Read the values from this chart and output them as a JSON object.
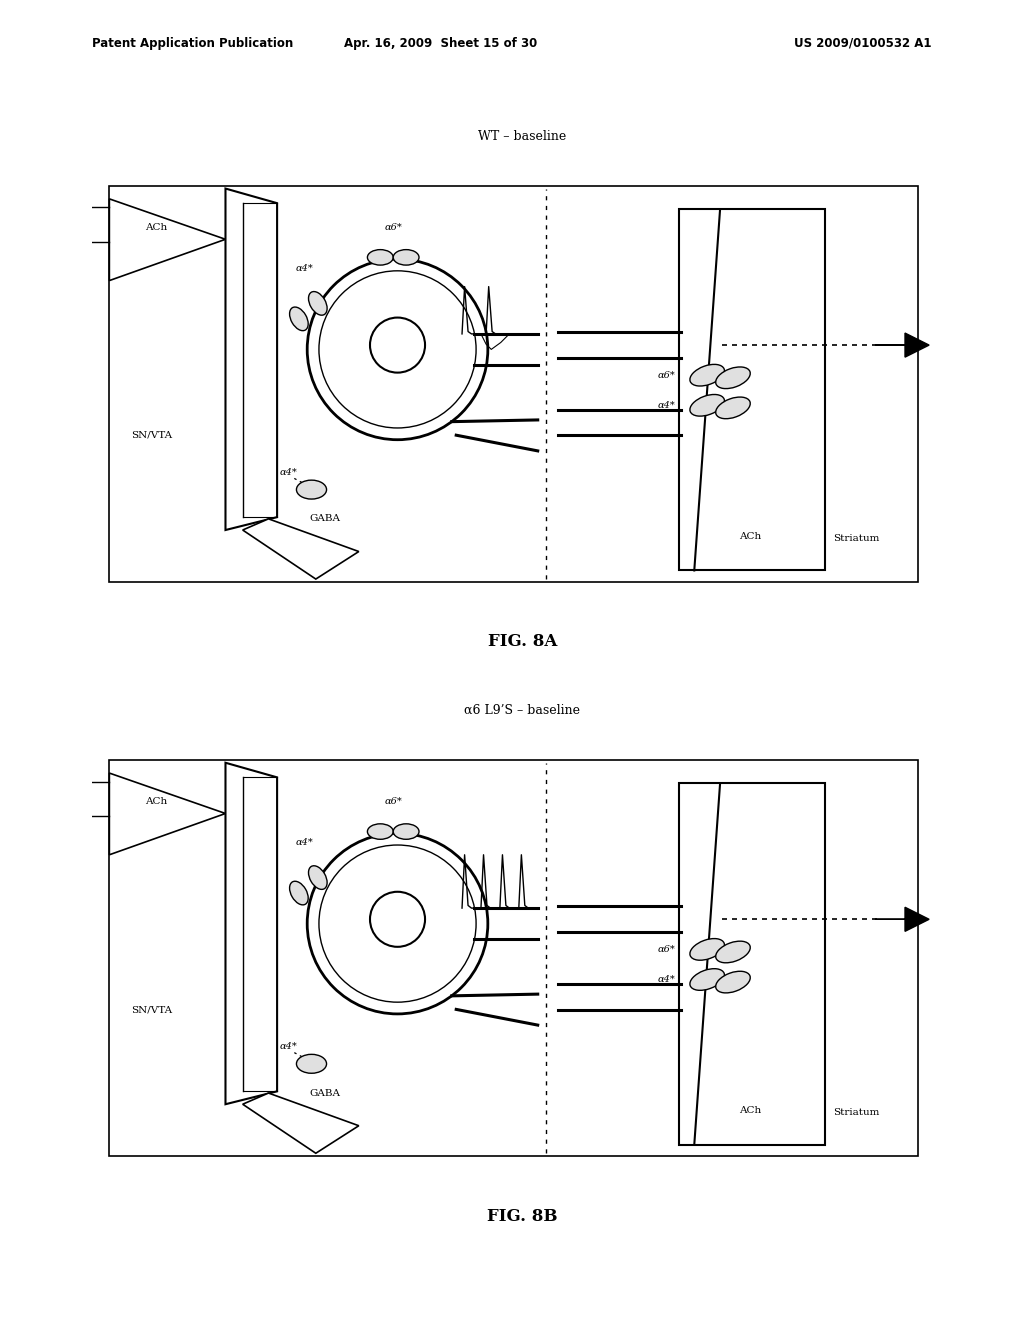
{
  "header_left": "Patent Application Publication",
  "header_mid": "Apr. 16, 2009  Sheet 15 of 30",
  "header_right": "US 2009/0100532 A1",
  "fig_a_title": "WT – baseline",
  "fig_b_title": "α6 L9’S – baseline",
  "fig_a_label": "FIG. 8A",
  "fig_b_label": "FIG. 8B",
  "bg_color": "#ffffff"
}
